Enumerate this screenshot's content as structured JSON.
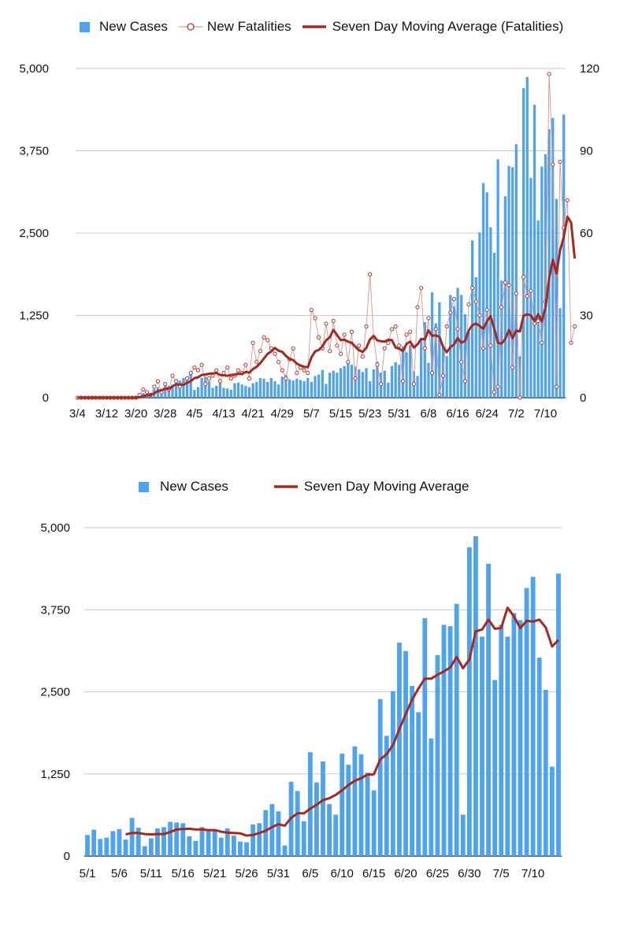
{
  "colors": {
    "bar": "#4ea3f1",
    "line": "#a8281b",
    "dot": "#b5372a",
    "grid": "#c8c8c8"
  },
  "chart_data": [
    {
      "type": "bar",
      "legend": {
        "cases": "New Cases",
        "fatalities": "New Fatalities",
        "avg": "Seven Day Moving Average (Fatalities)"
      },
      "legend_position": "top",
      "ylim_left": [
        0,
        5000
      ],
      "ylim_right": [
        0,
        120
      ],
      "yticks_left": [
        "0",
        "1,250",
        "2,500",
        "3,750",
        "5,000"
      ],
      "yticks_right": [
        "0",
        "30",
        "60",
        "90",
        "120"
      ],
      "xticks": [
        {
          "i": 0,
          "label": "3/4"
        },
        {
          "i": 8,
          "label": "3/12"
        },
        {
          "i": 16,
          "label": "3/20"
        },
        {
          "i": 24,
          "label": "3/28"
        },
        {
          "i": 32,
          "label": "4/5"
        },
        {
          "i": 40,
          "label": "4/13"
        },
        {
          "i": 48,
          "label": "4/21"
        },
        {
          "i": 56,
          "label": "4/29"
        },
        {
          "i": 64,
          "label": "5/7"
        },
        {
          "i": 72,
          "label": "5/15"
        },
        {
          "i": 80,
          "label": "5/23"
        },
        {
          "i": 88,
          "label": "5/31"
        },
        {
          "i": 96,
          "label": "6/8"
        },
        {
          "i": 104,
          "label": "6/16"
        },
        {
          "i": 112,
          "label": "6/24"
        },
        {
          "i": 120,
          "label": "7/2"
        },
        {
          "i": 128,
          "label": "7/10"
        }
      ],
      "grid": true,
      "cases": [
        0,
        0,
        0,
        0,
        0,
        0,
        0,
        0,
        0,
        0,
        0,
        0,
        0,
        0,
        0,
        0,
        30,
        50,
        70,
        100,
        60,
        130,
        160,
        100,
        200,
        180,
        200,
        230,
        260,
        300,
        320,
        350,
        120,
        160,
        300,
        320,
        250,
        150,
        180,
        280,
        150,
        140,
        120,
        220,
        230,
        200,
        180,
        160,
        220,
        240,
        300,
        290,
        240,
        300,
        250,
        200,
        320,
        350,
        280,
        260,
        290,
        270,
        250,
        300,
        240,
        330,
        350,
        420,
        210,
        380,
        410,
        380,
        450,
        480,
        520,
        500,
        470,
        430,
        390,
        450,
        250,
        430,
        550,
        380,
        410,
        230,
        480,
        540,
        500,
        780,
        690,
        800,
        400,
        330,
        880,
        1150,
        530,
        1600,
        1130,
        1450,
        780,
        630,
        1560,
        1390,
        1670,
        1560,
        1270,
        1000,
        2390,
        1830,
        2510,
        3260,
        3120,
        2590,
        2200,
        3620,
        1780,
        3060,
        3520,
        3500,
        3850,
        630,
        4700,
        4870,
        3340,
        4450,
        2690,
        3510,
        3700,
        4080,
        4250,
        3020,
        1360,
        4300
      ],
      "fatalities": [
        0,
        0,
        0,
        0,
        0,
        0,
        0,
        0,
        0,
        0,
        0,
        0,
        0,
        0,
        0,
        0,
        0,
        1,
        3,
        2,
        1,
        4,
        6,
        2,
        5,
        3,
        8,
        6,
        4,
        5,
        7,
        9,
        11,
        10,
        12,
        5,
        7,
        8,
        10,
        6,
        9,
        11,
        7,
        8,
        10,
        9,
        12,
        7,
        20,
        13,
        17,
        22,
        21,
        18,
        16,
        13,
        10,
        7,
        14,
        18,
        9,
        11,
        10,
        9,
        32,
        29,
        22,
        18,
        27,
        17,
        28,
        19,
        16,
        23,
        13,
        24,
        7,
        19,
        15,
        26,
        45,
        22,
        12,
        5,
        18,
        20,
        25,
        26,
        19,
        6,
        23,
        24,
        5,
        33,
        40,
        18,
        29,
        9,
        25,
        1,
        8,
        26,
        31,
        36,
        25,
        13,
        6,
        34,
        40,
        35,
        30,
        18,
        32,
        19,
        2,
        4,
        33,
        42,
        41,
        11,
        38,
        0,
        44,
        37,
        39,
        27,
        28,
        20,
        35,
        118,
        85,
        4,
        86,
        62,
        72,
        20,
        26
      ]
    },
    {
      "type": "bar",
      "legend": {
        "cases": "New Cases",
        "avg": "Seven Day Moving Average"
      },
      "legend_position": "top",
      "ylim": [
        0,
        5000
      ],
      "yticks": [
        "0",
        "1,250",
        "2,500",
        "3,750",
        "5,000"
      ],
      "xticks": [
        {
          "i": 0,
          "label": "5/1"
        },
        {
          "i": 5,
          "label": "5/6"
        },
        {
          "i": 10,
          "label": "5/11"
        },
        {
          "i": 15,
          "label": "5/16"
        },
        {
          "i": 20,
          "label": "5/21"
        },
        {
          "i": 25,
          "label": "5/26"
        },
        {
          "i": 30,
          "label": "5/31"
        },
        {
          "i": 35,
          "label": "6/5"
        },
        {
          "i": 40,
          "label": "6/10"
        },
        {
          "i": 45,
          "label": "6/15"
        },
        {
          "i": 50,
          "label": "6/20"
        },
        {
          "i": 55,
          "label": "6/25"
        },
        {
          "i": 60,
          "label": "6/30"
        },
        {
          "i": 65,
          "label": "7/5"
        },
        {
          "i": 70,
          "label": "7/10"
        }
      ],
      "grid": true,
      "cases": [
        320,
        400,
        260,
        280,
        380,
        410,
        250,
        580,
        430,
        150,
        270,
        420,
        440,
        520,
        510,
        500,
        300,
        230,
        440,
        380,
        400,
        280,
        420,
        310,
        220,
        210,
        480,
        500,
        700,
        790,
        680,
        160,
        1130,
        990,
        530,
        1580,
        1120,
        1440,
        790,
        630,
        1560,
        1390,
        1670,
        1550,
        1270,
        1000,
        2390,
        1830,
        2510,
        3250,
        3120,
        2590,
        2190,
        3620,
        1790,
        3060,
        3520,
        3500,
        3840,
        630,
        4700,
        4870,
        3340,
        4450,
        2680,
        3520,
        3340,
        3700,
        3590,
        4080,
        4250,
        3020,
        2530,
        1360,
        4300
      ],
      "avg": [
        null,
        null,
        null,
        null,
        null,
        null,
        330,
        350,
        350,
        335,
        330,
        335,
        335,
        365,
        405,
        410,
        415,
        405,
        405,
        395,
        395,
        370,
        355,
        350,
        345,
        310,
        320,
        350,
        385,
        440,
        485,
        460,
        580,
        650,
        650,
        720,
        780,
        850,
        880,
        930,
        1000,
        1080,
        1145,
        1185,
        1240,
        1245,
        1470,
        1550,
        1690,
        1930,
        2160,
        2380,
        2550,
        2700,
        2700,
        2760,
        2810,
        2870,
        3030,
        2860,
        2990,
        3420,
        3450,
        3600,
        3460,
        3470,
        3780,
        3650,
        3470,
        3580,
        3570,
        3600,
        3480,
        3190,
        3290
      ]
    }
  ]
}
